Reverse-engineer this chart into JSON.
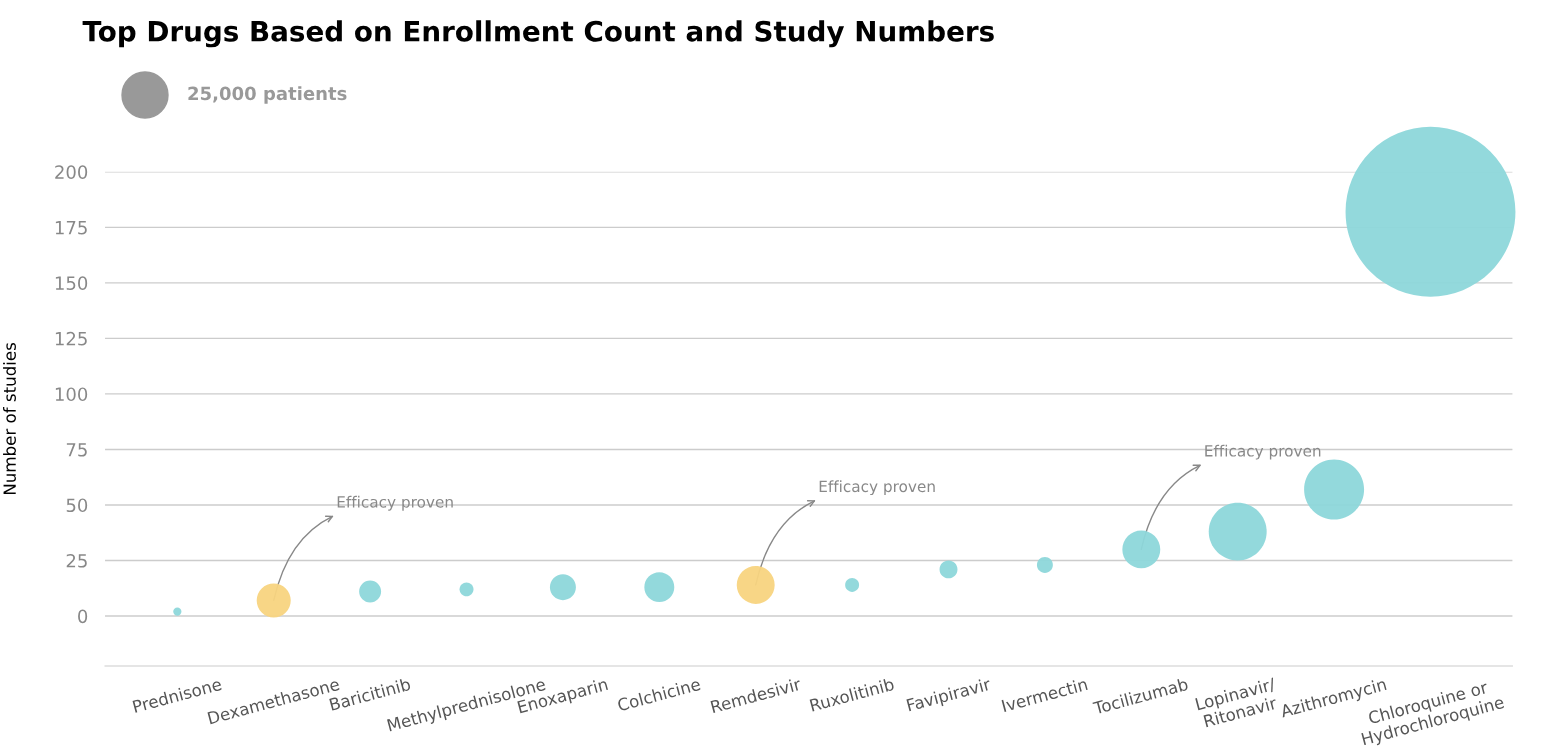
{
  "chart_data": {
    "type": "bubble",
    "title": "Top Drugs Based on Enrollment Count and Study Numbers",
    "ylabel": "Number of studies",
    "categories": [
      "Prednisone",
      "Dexamethasone",
      "Baricitinib",
      "Methylprednisolone",
      "Enoxaparin",
      "Colchicine",
      "Remdesivir",
      "Ruxolitinib",
      "Favipiravir",
      "Ivermectin",
      "Tocilizumab",
      "Lopinavir/\nRitonavir",
      "Azithromycin",
      "Chloroquine or\nHydrochloroquine"
    ],
    "values": [
      2,
      7,
      11,
      12,
      13,
      13,
      14,
      14,
      21,
      23,
      30,
      38,
      57,
      182
    ],
    "sizes": [
      800,
      13700,
      5700,
      2300,
      8000,
      10600,
      17000,
      2300,
      3800,
      3000,
      17000,
      39700,
      42500,
      341000
    ],
    "colors": [
      "#8dd7da",
      "#f8d47f",
      "#8dd7da",
      "#8dd7da",
      "#8dd7da",
      "#8dd7da",
      "#f8d47f",
      "#8dd7da",
      "#8dd7da",
      "#8dd7da",
      "#8dd7da",
      "#8dd7da",
      "#8dd7da",
      "#8dd7da"
    ],
    "size_legend": [
      {
        "value": 25000,
        "label": "25,000 patients"
      }
    ],
    "ylim": [
      -22.5,
      200
    ],
    "yticks": [
      0,
      25,
      50,
      75,
      100,
      125,
      150,
      175,
      200
    ],
    "grid": "y",
    "annotations": [
      {
        "text": "Efficacy proven",
        "x": "Dexamethasone",
        "y": 7
      },
      {
        "text": "Efficacy proven",
        "x": "Remdesivir",
        "y": 14
      },
      {
        "text": "Efficacy proven",
        "x": "Tocilizumab",
        "y": 30
      }
    ]
  }
}
